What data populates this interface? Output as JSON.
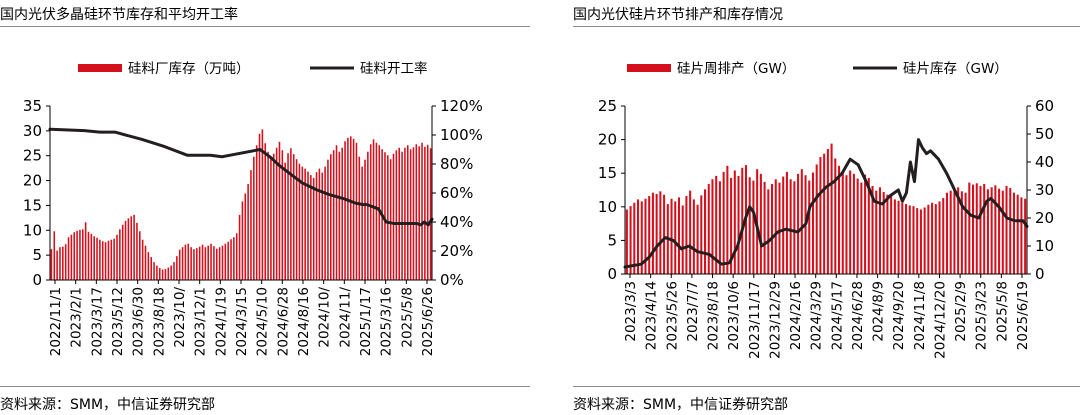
{
  "colors": {
    "bar": "#d4101c",
    "line": "#231f20",
    "axis": "#000000",
    "rule": "#8c8c8c"
  },
  "panels": [
    {
      "title": "国内光伏多晶硅环节库存和平均开工率",
      "source": "资料来源：SMM，中信证券研究部",
      "chart_data": {
        "type": "bar",
        "title": "国内光伏多晶硅环节库存和平均开工率",
        "xlabel": "",
        "legend_position": "top-center",
        "grid": false,
        "x_tick_labels": [
          "2022/11/1",
          "2023/2/1",
          "2023/3/17",
          "2023/5/12",
          "2023/6/30",
          "2023/8/18",
          "2023/10/",
          "2023/12/1",
          "2024/1/19",
          "2024/3/15",
          "2024/5/10",
          "2024/6/28",
          "2024/8/16",
          "2024/10/",
          "2024/11/",
          "2025/1/17",
          "2025/3/16",
          "2025/5/8",
          "2025/6/26"
        ],
        "y_left": {
          "ylim": [
            0,
            35
          ],
          "ticks": [
            "0",
            "5",
            "10",
            "15",
            "20",
            "25",
            "30",
            "35"
          ]
        },
        "y_right": {
          "ylim": [
            0,
            1.2
          ],
          "ticks": [
            "0%",
            "20%",
            "40%",
            "60%",
            "80%",
            "100%",
            "120%"
          ]
        },
        "series": [
          {
            "name": "硅料厂库存（万吨）",
            "type": "bar",
            "axis": "left",
            "values": [
              6.2,
              9.8,
              5.9,
              6.6,
              6.7,
              7.2,
              8.6,
              9.1,
              9.6,
              9.9,
              10.1,
              10.2,
              11.6,
              9.7,
              9.3,
              8.8,
              8.5,
              8.1,
              7.8,
              7.6,
              7.9,
              8.1,
              8.3,
              9.1,
              10.2,
              11.1,
              11.9,
              12.4,
              12.8,
              13.1,
              11.5,
              9.8,
              8.1,
              6.9,
              5.6,
              4.6,
              3.6,
              2.9,
              2.4,
              2.1,
              2.2,
              2.5,
              2.9,
              3.6,
              4.8,
              6.1,
              6.6,
              7.1,
              7.3,
              6.6,
              6.2,
              6.4,
              6.7,
              7.1,
              6.6,
              6.9,
              7.3,
              6.8,
              6.3,
              6.6,
              6.9,
              7.3,
              7.7,
              8.2,
              8.6,
              9.4,
              13.1,
              15.8,
              17.4,
              19.3,
              22.1,
              24.8,
              27.1,
              29.4,
              30.3,
              27.5,
              25.8,
              24.3,
              25.4,
              26.6,
              27.8,
              26.1,
              23.6,
              25.5,
              26.5,
              25.3,
              24.3,
              23.4,
              22.8,
              22.4,
              21.8,
              21.1,
              20.5,
              21.7,
              22.4,
              21.6,
              22.8,
              24.2,
              25.3,
              26.1,
              27.1,
              25.8,
              26.6,
              27.9,
              28.6,
              28.9,
              28.4,
              27.6,
              24.8,
              22.8,
              24.2,
              25.8,
              27.3,
              28.3,
              27.6,
              27.1,
              26.3,
              25.7,
              25.1,
              24.3,
              25.4,
              26.1,
              26.6,
              25.8,
              26.6,
              27.1,
              26.3,
              26.7,
              27.3,
              26.9,
              27.6,
              26.8,
              27.2,
              26.5
            ]
          },
          {
            "name": "硅料开工率",
            "type": "line",
            "axis": "right",
            "x_frac": [
              0,
              0.09,
              0.13,
              0.17,
              0.24,
              0.3,
              0.36,
              0.38,
              0.41,
              0.42,
              0.45,
              0.47,
              0.55,
              0.56,
              0.58,
              0.6,
              0.63,
              0.66,
              0.7,
              0.73,
              0.77,
              0.8,
              0.82,
              0.83,
              0.84,
              0.86,
              0.88,
              0.9,
              0.92,
              0.93,
              0.94,
              0.96,
              0.97,
              0.98,
              0.99,
              1
            ],
            "values": [
              1.04,
              1.03,
              1.02,
              1.02,
              0.97,
              0.92,
              0.86,
              0.86,
              0.86,
              0.86,
              0.85,
              0.86,
              0.9,
              0.88,
              0.84,
              0.79,
              0.73,
              0.67,
              0.62,
              0.59,
              0.56,
              0.53,
              0.52,
              0.52,
              0.51,
              0.49,
              0.4,
              0.39,
              0.39,
              0.39,
              0.39,
              0.39,
              0.38,
              0.4,
              0.38,
              0.42
            ]
          }
        ]
      }
    },
    {
      "title": "国内光伏硅片环节排产和库存情况",
      "source": "资料来源：SMM，中信证券研究部",
      "chart_data": {
        "type": "bar",
        "title": "国内光伏硅片环节排产和库存情况",
        "xlabel": "",
        "legend_position": "top-center",
        "grid": false,
        "x_tick_labels": [
          "2023/3/3",
          "2023/4/14",
          "2023/5/26",
          "2023/7/7",
          "2023/8/18",
          "2023/10/6",
          "2023/11/17",
          "2023/12/29",
          "2024/2/16",
          "2024/3/29",
          "2024/5/17",
          "2024/6/28",
          "2024/8/9",
          "2024/9/20",
          "2024/11/8",
          "2024/12/20",
          "2025/2/9",
          "2025/3/23",
          "2025/5/8",
          "2025/6/19"
        ],
        "y_left": {
          "ylim": [
            0,
            25
          ],
          "ticks": [
            "0",
            "5",
            "10",
            "15",
            "20",
            "25"
          ]
        },
        "y_right": {
          "ylim": [
            0,
            60
          ],
          "ticks": [
            "0",
            "10",
            "20",
            "30",
            "40",
            "50",
            "60"
          ]
        },
        "series": [
          {
            "name": "硅片周排产（GW）",
            "type": "bar",
            "axis": "left",
            "values": [
              9.6,
              10.1,
              10.6,
              11.1,
              10.8,
              11.2,
              11.6,
              12.1,
              11.9,
              12.3,
              11.8,
              10.4,
              11.2,
              10.8,
              11.4,
              10.2,
              11.6,
              12.4,
              11.1,
              10.3,
              11.7,
              12.6,
              13.4,
              14.1,
              14.6,
              13.8,
              15.2,
              16.1,
              14.3,
              15.4,
              14.6,
              15.8,
              16.2,
              14.4,
              13.9,
              15.6,
              14.9,
              13.7,
              12.6,
              13.4,
              14.1,
              13.6,
              14.5,
              15.2,
              14.1,
              13.8,
              14.9,
              15.6,
              14.7,
              13.9,
              15.1,
              16.3,
              17.4,
              17.9,
              18.6,
              19.4,
              17.2,
              16.1,
              15.3,
              14.7,
              15.4,
              14.9,
              14.2,
              13.6,
              14.8,
              14.3,
              13.1,
              12.4,
              12.9,
              12.2,
              11.8,
              11.6,
              11.1,
              10.9,
              10.6,
              10.4,
              10.2,
              10.1,
              9.8,
              9.6,
              9.9,
              10.3,
              10.6,
              10.4,
              10.8,
              11.3,
              12.1,
              12.4,
              12.6,
              12.9,
              12.3,
              12.1,
              13.6,
              13.3,
              13.5,
              13.1,
              13.4,
              12.6,
              12.9,
              13.2,
              12.7,
              12.4,
              13.1,
              12.8,
              12.1,
              11.8,
              11.4,
              11.2
            ]
          },
          {
            "name": "硅片库存（GW）",
            "type": "line",
            "axis": "right",
            "x_frac": [
              0,
              0.04,
              0.06,
              0.08,
              0.1,
              0.12,
              0.14,
              0.16,
              0.18,
              0.21,
              0.24,
              0.26,
              0.28,
              0.3,
              0.31,
              0.32,
              0.34,
              0.36,
              0.38,
              0.4,
              0.43,
              0.45,
              0.46,
              0.48,
              0.5,
              0.52,
              0.54,
              0.56,
              0.58,
              0.6,
              0.62,
              0.64,
              0.66,
              0.68,
              0.69,
              0.7,
              0.71,
              0.72,
              0.73,
              0.74,
              0.75,
              0.76,
              0.78,
              0.8,
              0.82,
              0.84,
              0.86,
              0.88,
              0.9,
              0.91,
              0.93,
              0.95,
              0.97,
              0.99,
              1
            ],
            "values": [
              2.5,
              3.5,
              6,
              10,
              13,
              12,
              9,
              10,
              8,
              7,
              3.5,
              4,
              10,
              20,
              24,
              22,
              10,
              12,
              15,
              16,
              15,
              18,
              24,
              28,
              31,
              33,
              36,
              41,
              39,
              33,
              26,
              25,
              28,
              30,
              26,
              29,
              40,
              33,
              48,
              45,
              43,
              44,
              41,
              36,
              30,
              24,
              21,
              20,
              26,
              27,
              24,
              20,
              19,
              19,
              17
            ]
          }
        ]
      }
    }
  ]
}
